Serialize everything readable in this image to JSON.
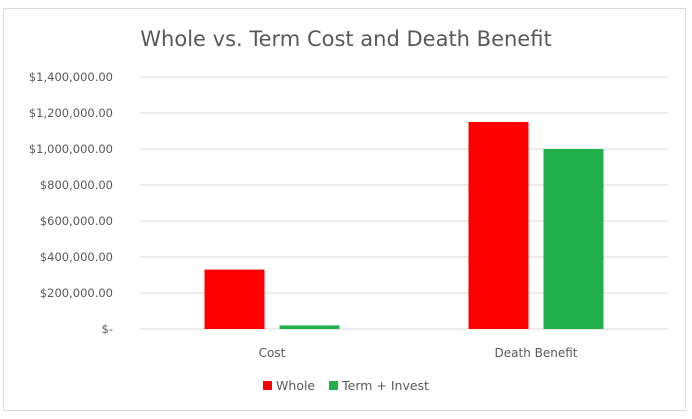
{
  "chart_data": {
    "type": "bar",
    "title": "Whole vs. Term Cost and Death Benefit",
    "categories": [
      "Cost",
      "Death Benefit"
    ],
    "series": [
      {
        "name": "Whole",
        "color": "#ff0000",
        "values": [
          330000,
          1150000
        ]
      },
      {
        "name": "Term + Invest",
        "color": "#21b04b",
        "values": [
          20000,
          1000000
        ]
      }
    ],
    "ylim": [
      0,
      1400000
    ],
    "yticks": [
      0,
      200000,
      400000,
      600000,
      800000,
      1000000,
      1200000,
      1400000
    ],
    "ytick_labels": [
      "$-",
      "$200,000.00",
      "$400,000.00",
      "$600,000.00",
      "$800,000.00",
      "$1,000,000.00",
      "$1,200,000.00",
      "$1,400,000.00"
    ],
    "xlabel": "",
    "ylabel": "",
    "grid": true,
    "legend": "bottom"
  }
}
